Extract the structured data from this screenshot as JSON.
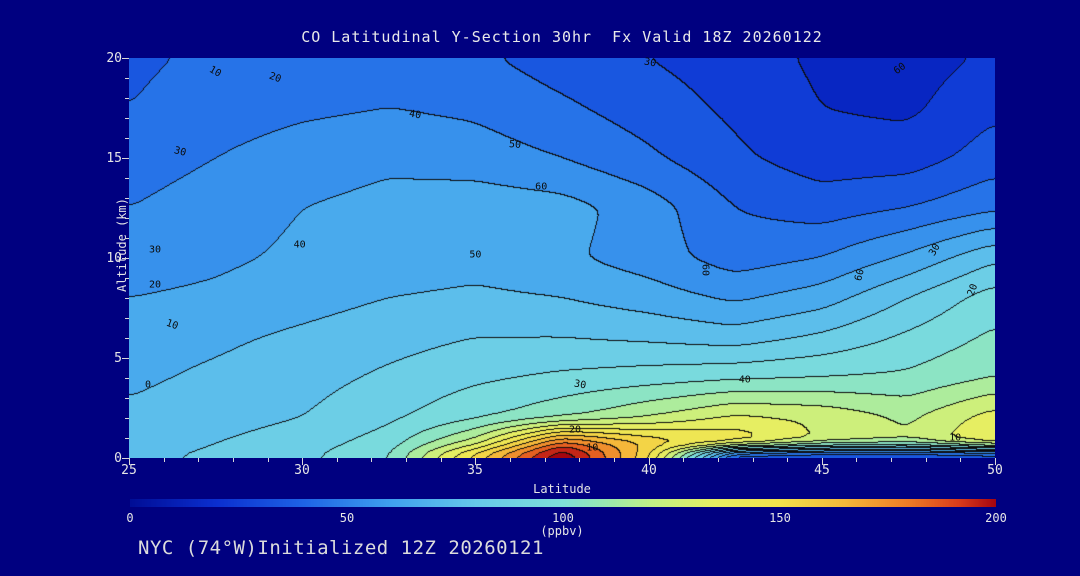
{
  "title": "CO Latitudinal Y-Section 30hr  Fx Valid 18Z 20260122",
  "footer": "NYC (74°W)Initialized 12Z 20260121",
  "axes": {
    "y_label": "Altitude (km)",
    "x_label": "Latitude",
    "y_ticks": [
      "20",
      "15",
      "10",
      "5",
      "0"
    ],
    "x_ticks": [
      "25",
      "30",
      "35",
      "40",
      "45",
      "50"
    ]
  },
  "colorbar": {
    "ticks": [
      "0",
      "50",
      "100",
      "150",
      "200"
    ],
    "units": "(ppbv)"
  },
  "chart_data": {
    "type": "heatmap",
    "title": "CO Latitudinal Y-Section 30hr  Fx Valid 18Z 20260122",
    "xlabel": "Latitude",
    "ylabel": "Altitude (km)",
    "fill_units": "ppbv",
    "x_range": [
      25,
      50
    ],
    "y_range": [
      0,
      20
    ],
    "fill_range": [
      0,
      200
    ],
    "contour_interval": 10,
    "lats": [
      25,
      27.5,
      30,
      32.5,
      35,
      37.5,
      40,
      42.5,
      45,
      47.5,
      50
    ],
    "alts_top_to_bottom": [
      20,
      17.5,
      15,
      12.5,
      10,
      8,
      6,
      4,
      2,
      0.7,
      0
    ],
    "values_ppbv": [
      [
        38,
        42,
        40,
        45,
        42,
        35,
        30,
        25,
        18,
        15,
        22
      ],
      [
        40,
        45,
        48,
        50,
        48,
        42,
        35,
        28,
        20,
        18,
        28
      ],
      [
        45,
        50,
        55,
        58,
        55,
        50,
        42,
        32,
        25,
        25,
        35
      ],
      [
        50,
        55,
        60,
        63,
        66,
        64,
        55,
        40,
        35,
        40,
        48
      ],
      [
        55,
        58,
        62,
        64,
        66,
        62,
        55,
        45,
        50,
        62,
        78
      ],
      [
        60,
        62,
        66,
        70,
        72,
        70,
        65,
        58,
        65,
        80,
        95
      ],
      [
        65,
        68,
        72,
        76,
        80,
        80,
        78,
        75,
        82,
        92,
        102
      ],
      [
        68,
        72,
        76,
        82,
        88,
        92,
        95,
        98,
        100,
        102,
        110
      ],
      [
        72,
        76,
        80,
        88,
        98,
        108,
        120,
        132,
        128,
        118,
        135
      ],
      [
        75,
        80,
        85,
        95,
        125,
        185,
        160,
        150,
        128,
        122,
        142
      ],
      [
        78,
        82,
        88,
        100,
        160,
        215,
        150,
        8,
        5,
        5,
        8
      ]
    ],
    "colormap_stops": [
      [
        0,
        "#000d96"
      ],
      [
        20,
        "#0b2fd0"
      ],
      [
        40,
        "#1e64e6"
      ],
      [
        60,
        "#3fa0ee"
      ],
      [
        80,
        "#66c8ea"
      ],
      [
        100,
        "#7fe0d9"
      ],
      [
        110,
        "#9ae8b0"
      ],
      [
        120,
        "#c0ef88"
      ],
      [
        135,
        "#e6ee62"
      ],
      [
        150,
        "#f2e24c"
      ],
      [
        165,
        "#f5b83a"
      ],
      [
        180,
        "#ee7b26"
      ],
      [
        192,
        "#d8391b"
      ],
      [
        200,
        "#a50510"
      ]
    ],
    "contour_labels": [
      {
        "v": "10",
        "x": 0.099,
        "y": 0.035,
        "rot": 30
      },
      {
        "v": "20",
        "x": 0.169,
        "y": 0.05,
        "rot": 20
      },
      {
        "v": "30",
        "x": 0.602,
        "y": 0.012,
        "rot": 10
      },
      {
        "v": "60",
        "x": 0.89,
        "y": 0.028,
        "rot": -35
      },
      {
        "v": "40",
        "x": 0.33,
        "y": 0.143,
        "rot": 10
      },
      {
        "v": "30",
        "x": 0.059,
        "y": 0.235,
        "rot": 15
      },
      {
        "v": "50",
        "x": 0.446,
        "y": 0.218,
        "rot": 5
      },
      {
        "v": "60",
        "x": 0.476,
        "y": 0.322,
        "rot": 0
      },
      {
        "v": "30",
        "x": 0.03,
        "y": 0.48,
        "rot": 0
      },
      {
        "v": "40",
        "x": 0.197,
        "y": 0.468,
        "rot": 0
      },
      {
        "v": "50",
        "x": 0.4,
        "y": 0.493,
        "rot": 0
      },
      {
        "v": "20",
        "x": 0.03,
        "y": 0.568,
        "rot": 0
      },
      {
        "v": "60",
        "x": 0.665,
        "y": 0.53,
        "rot": 90
      },
      {
        "v": "60",
        "x": 0.844,
        "y": 0.543,
        "rot": -75
      },
      {
        "v": "30",
        "x": 0.931,
        "y": 0.48,
        "rot": -60
      },
      {
        "v": "20",
        "x": 0.975,
        "y": 0.58,
        "rot": -70
      },
      {
        "v": "10",
        "x": 0.05,
        "y": 0.668,
        "rot": 20
      },
      {
        "v": "0",
        "x": 0.022,
        "y": 0.818,
        "rot": 0
      },
      {
        "v": "30",
        "x": 0.521,
        "y": 0.818,
        "rot": 10
      },
      {
        "v": "40",
        "x": 0.711,
        "y": 0.805,
        "rot": 0
      },
      {
        "v": "20",
        "x": 0.515,
        "y": 0.93,
        "rot": 0
      },
      {
        "v": "10",
        "x": 0.535,
        "y": 0.975,
        "rot": 0
      },
      {
        "v": "10",
        "x": 0.954,
        "y": 0.95,
        "rot": 0
      }
    ]
  }
}
